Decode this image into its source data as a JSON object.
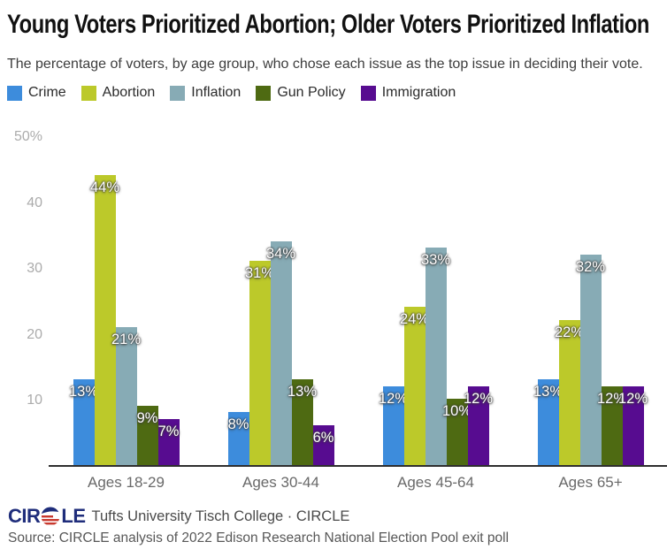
{
  "header": {
    "title": "Young Voters Prioritized Abortion; Older Voters Prioritized Inflation",
    "subtitle": "The percentage of voters, by age group, who chose each issue as the top issue in deciding their vote."
  },
  "chart_data": {
    "type": "bar",
    "title": "Young Voters Prioritized Abortion; Older Voters Prioritized Inflation",
    "subtitle": "The percentage of voters, by age group, who chose each issue as the top issue in deciding their vote.",
    "categories": [
      "Ages 18-29",
      "Ages 30-44",
      "Ages 45-64",
      "Ages 65+"
    ],
    "series": [
      {
        "name": "Crime",
        "color": "#3D8CDC",
        "values": [
          13,
          8,
          12,
          13
        ]
      },
      {
        "name": "Abortion",
        "color": "#BCC92A",
        "values": [
          44,
          31,
          24,
          22
        ]
      },
      {
        "name": "Inflation",
        "color": "#87ABB5",
        "values": [
          21,
          34,
          33,
          32
        ]
      },
      {
        "name": "Gun Policy",
        "color": "#4E6A12",
        "values": [
          9,
          13,
          10,
          12
        ]
      },
      {
        "name": "Immigration",
        "color": "#570C90",
        "values": [
          7,
          6,
          12,
          12
        ]
      }
    ],
    "value_suffix": "%",
    "value_labels_shown": true,
    "y_axis": {
      "tick_values": [
        50,
        40,
        30,
        20,
        10
      ],
      "tick_labels": [
        "50%",
        "40",
        "30",
        "20",
        "10"
      ],
      "ylim": [
        0,
        50
      ]
    },
    "grid": false,
    "legend_position": "top-left",
    "xlabel": "",
    "ylabel": ""
  },
  "footer": {
    "logo": {
      "left": "CIR",
      "right": "LE"
    },
    "attribution": "Tufts University Tisch College · CIRCLE",
    "source": "Source: CIRCLE analysis of 2022 Edison Research National Election Pool exit poll"
  },
  "colors": {
    "logo_navy": "#1F2D7B",
    "logo_red": "#C8392E",
    "axis_tick_gray": "#ABABAB",
    "category_gray": "#696969",
    "baseline": "#2E2E2E",
    "value_label": "#FFFFFF"
  }
}
